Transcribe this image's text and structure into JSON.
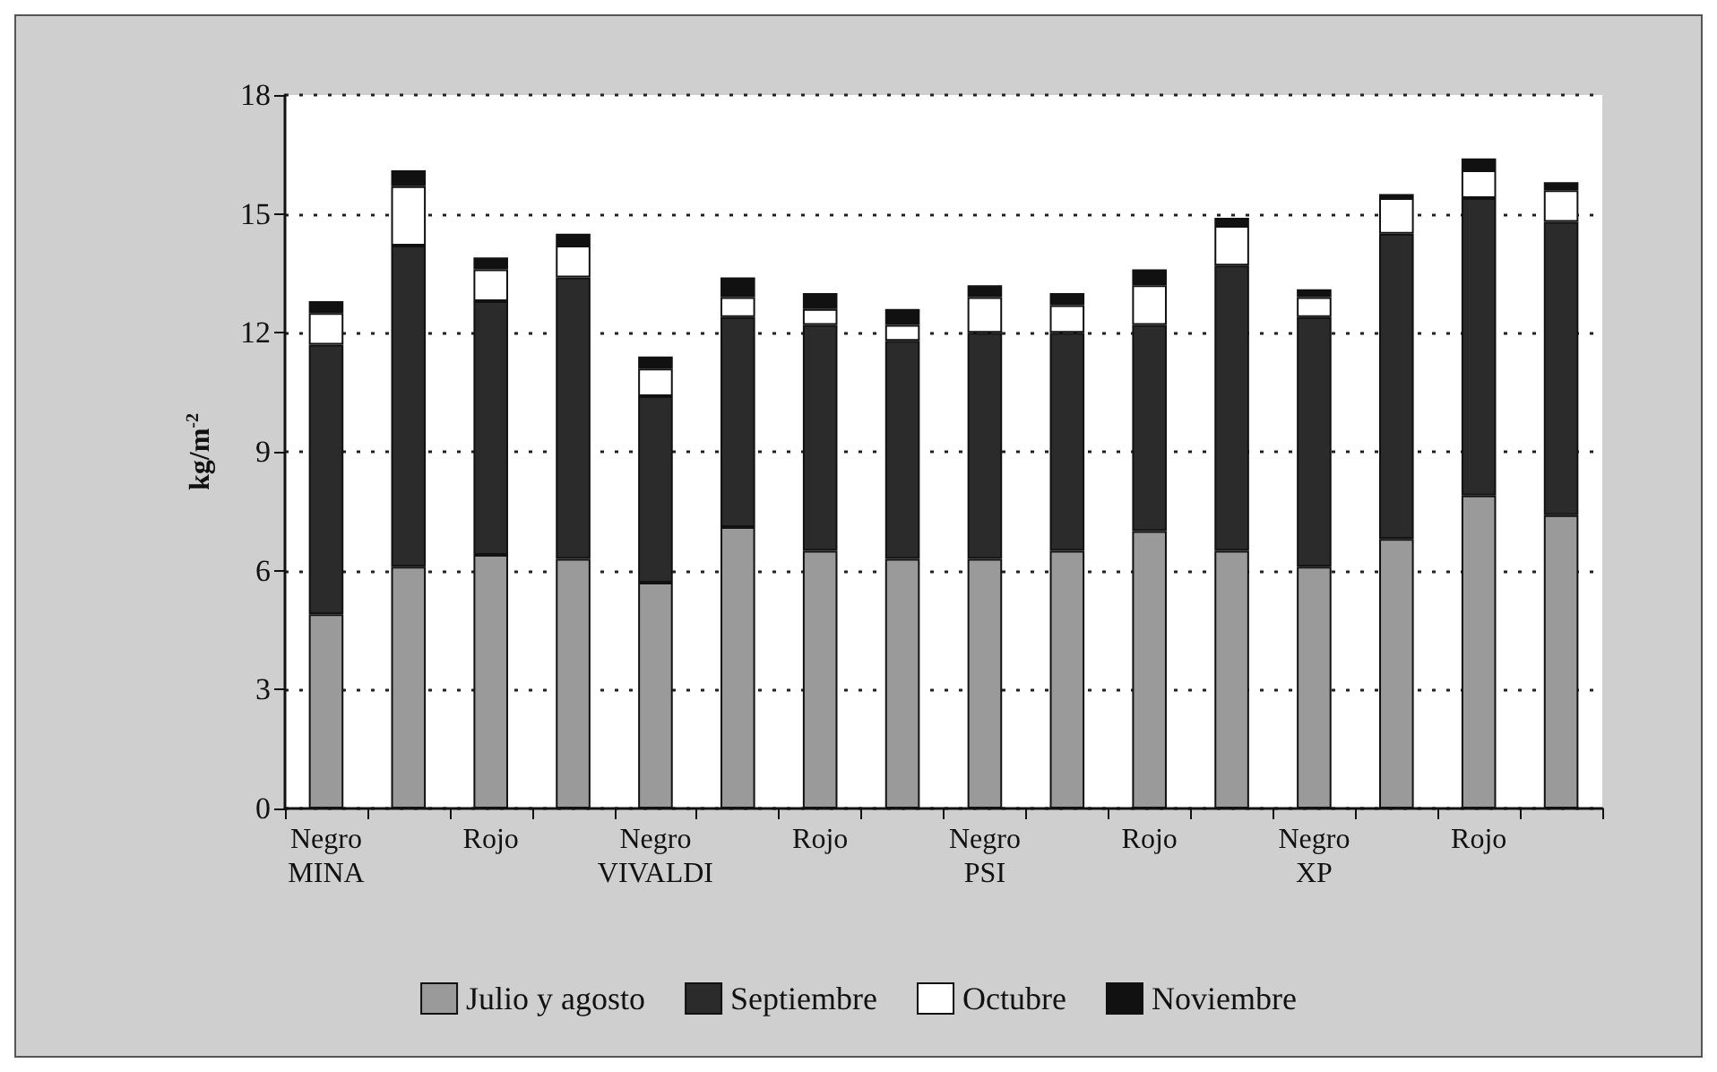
{
  "chart_data": {
    "type": "bar",
    "stacked": true,
    "ylabel": "kg/m$^{-2}$",
    "categories": [
      "Negro\nMINA",
      null,
      "Rojo",
      null,
      "Negro\nVIVALDI",
      null,
      "Rojo",
      null,
      "Negro\nPSI",
      null,
      "Rojo",
      null,
      "Negro\nXP",
      null,
      "Rojo",
      null
    ],
    "series": [
      {
        "name": "Julio y agosto",
        "color": "#9a9a9a",
        "values": [
          4.9,
          6.1,
          6.4,
          6.3,
          5.7,
          7.1,
          6.5,
          6.3,
          6.3,
          6.5,
          7.0,
          6.5,
          6.1,
          6.8,
          7.9,
          7.4
        ]
      },
      {
        "name": "Septiembre",
        "color": "#2b2b2b",
        "values": [
          6.8,
          8.1,
          6.4,
          7.1,
          4.7,
          5.3,
          5.7,
          5.5,
          5.7,
          5.5,
          5.2,
          7.2,
          6.3,
          7.7,
          7.5,
          7.4
        ]
      },
      {
        "name": "Octubre",
        "color": "#ffffff",
        "values": [
          0.8,
          1.5,
          0.8,
          0.8,
          0.7,
          0.5,
          0.4,
          0.4,
          0.9,
          0.7,
          1.0,
          1.0,
          0.5,
          0.9,
          0.7,
          0.8
        ]
      },
      {
        "name": "Noviembre",
        "color": "#111111",
        "values": [
          0.3,
          0.4,
          0.3,
          0.3,
          0.3,
          0.5,
          0.4,
          0.4,
          0.3,
          0.3,
          0.4,
          0.2,
          0.2,
          0.1,
          0.3,
          0.2
        ]
      }
    ],
    "ylim": [
      0,
      18
    ],
    "yticks": [
      0,
      3,
      6,
      9,
      12,
      15,
      18
    ],
    "grid": "y",
    "legend": "bottom"
  }
}
